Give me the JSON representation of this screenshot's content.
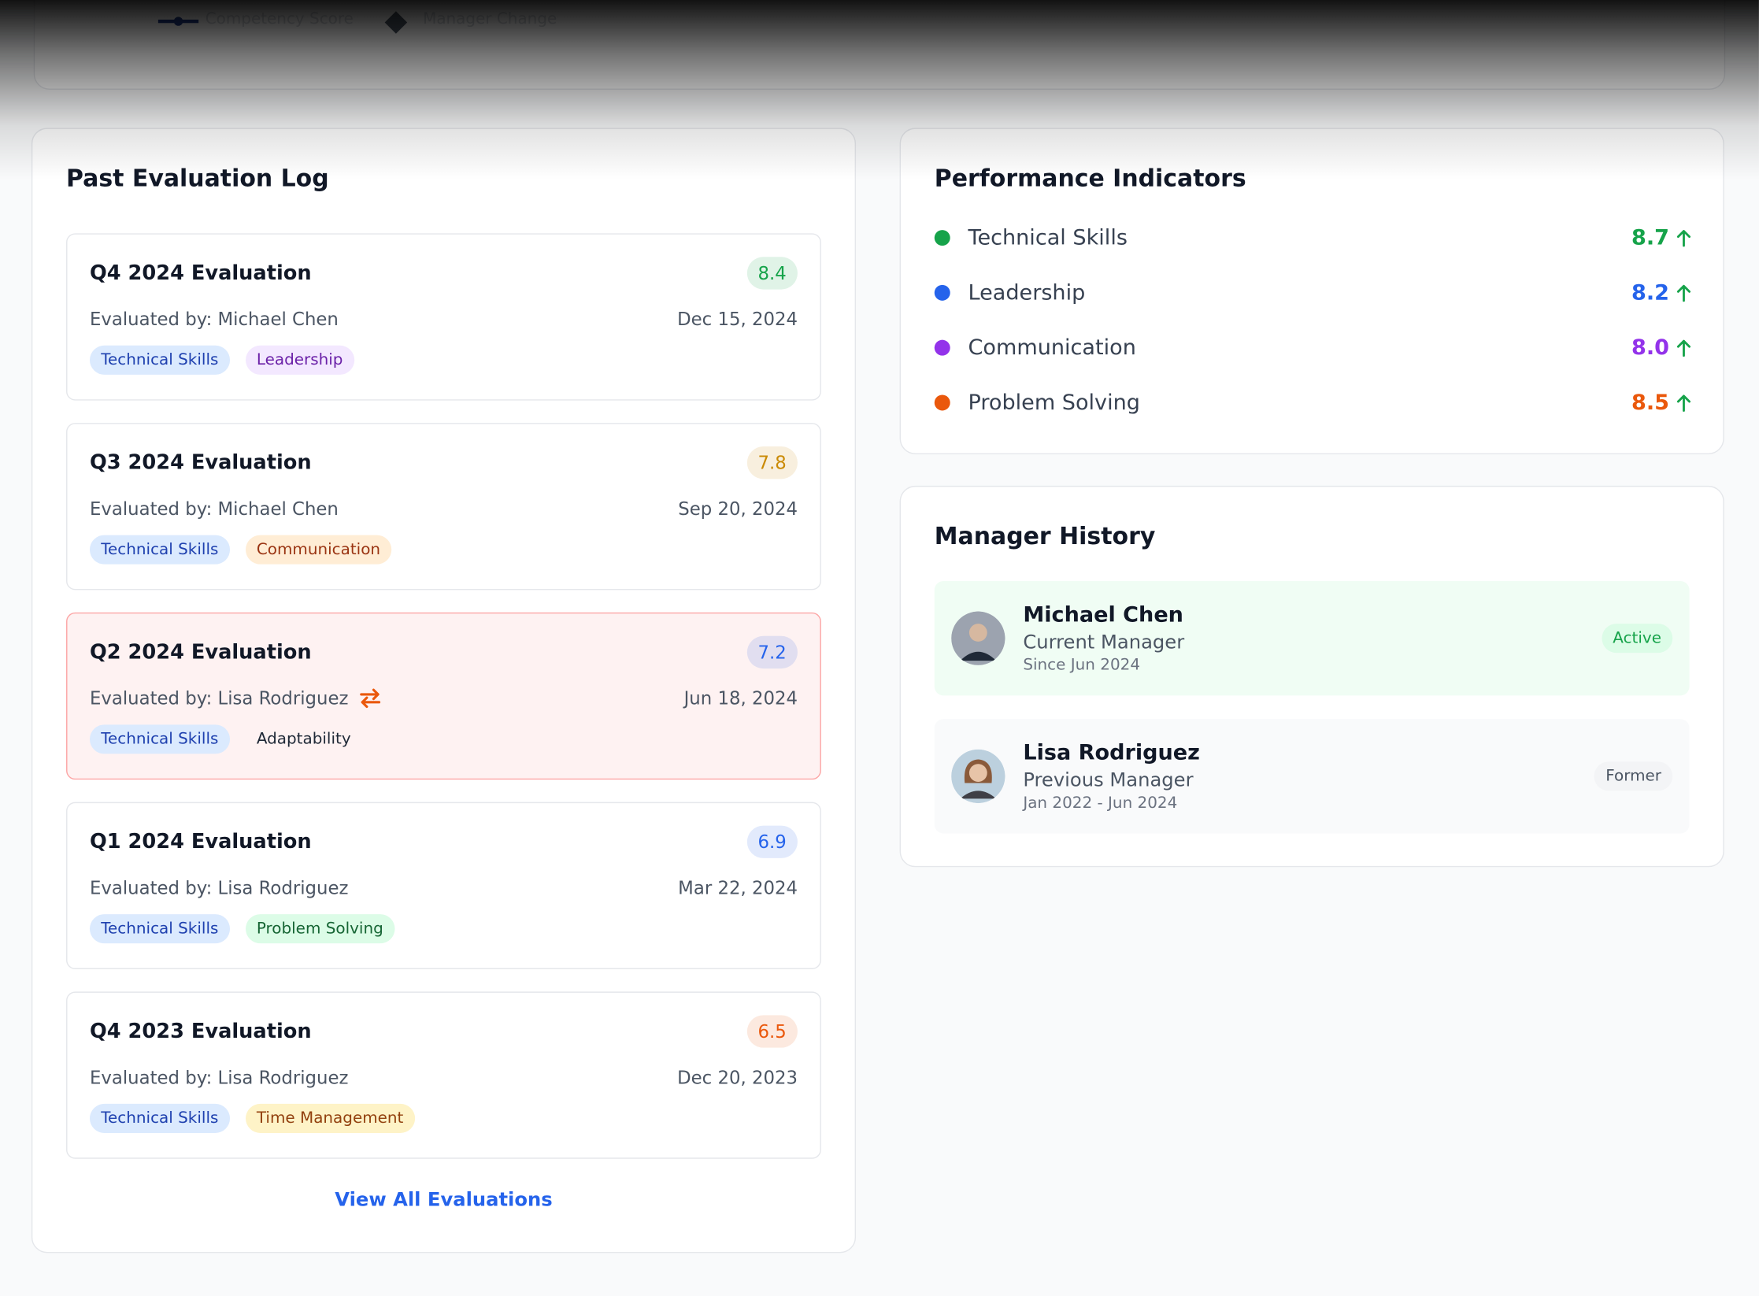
{
  "legend": [
    "Competency Score",
    "Manager Change"
  ],
  "evaluation_log": {
    "title": "Past Evaluation Log",
    "items": [
      {
        "title": "Q4 2024 Evaluation",
        "score": "8.4",
        "score_color": "#16a34a",
        "evaluator": "Evaluated by: Michael Chen",
        "date": "Dec 15, 2024",
        "manager_change": false,
        "tags": [
          {
            "label": "Technical Skills",
            "color": "#1e40af",
            "bg": "#dbeafe"
          },
          {
            "label": "Leadership",
            "color": "#6b21a8",
            "bg": "#f3e8ff"
          }
        ]
      },
      {
        "title": "Q3 2024 Evaluation",
        "score": "7.8",
        "score_color": "#ca8a04",
        "evaluator": "Evaluated by: Michael Chen",
        "date": "Sep 20, 2024",
        "manager_change": false,
        "tags": [
          {
            "label": "Technical Skills",
            "color": "#1e40af",
            "bg": "#dbeafe"
          },
          {
            "label": "Communication",
            "color": "#9a3412",
            "bg": "#ffedd5"
          }
        ]
      },
      {
        "title": "Q2 2024 Evaluation",
        "score": "7.2",
        "score_color": "#2563eb",
        "evaluator": "Evaluated by: Lisa Rodriguez",
        "date": "Jun 18, 2024",
        "manager_change": true,
        "tags": [
          {
            "label": "Technical Skills",
            "color": "#1e40af",
            "bg": "#dbeafe"
          },
          {
            "label": "Adaptability",
            "color": "#1f2937",
            "bg": "#fef2f2"
          }
        ]
      },
      {
        "title": "Q1 2024 Evaluation",
        "score": "6.9",
        "score_color": "#2563eb",
        "evaluator": "Evaluated by: Lisa Rodriguez",
        "date": "Mar 22, 2024",
        "manager_change": false,
        "tags": [
          {
            "label": "Technical Skills",
            "color": "#1e40af",
            "bg": "#dbeafe"
          },
          {
            "label": "Problem Solving",
            "color": "#166534",
            "bg": "#dcfce7"
          }
        ]
      },
      {
        "title": "Q4 2023 Evaluation",
        "score": "6.5",
        "score_color": "#ea580c",
        "evaluator": "Evaluated by: Lisa Rodriguez",
        "date": "Dec 20, 2023",
        "manager_change": false,
        "tags": [
          {
            "label": "Technical Skills",
            "color": "#1e40af",
            "bg": "#dbeafe"
          },
          {
            "label": "Time Management",
            "color": "#92400e",
            "bg": "#fef3c7"
          }
        ]
      }
    ],
    "link": "View All Evaluations"
  },
  "performance": {
    "title": "Performance Indicators",
    "items": [
      {
        "name": "Technical Skills",
        "value": "8.7",
        "color": "#16a34a"
      },
      {
        "name": "Leadership",
        "value": "8.2",
        "color": "#2563eb"
      },
      {
        "name": "Communication",
        "value": "8.0",
        "color": "#9333ea"
      },
      {
        "name": "Problem Solving",
        "value": "8.5",
        "color": "#ea580c"
      }
    ]
  },
  "manager_history": {
    "title": "Manager History",
    "items": [
      {
        "name": "Michael Chen",
        "role": "Current Manager",
        "period": "Since Jun 2024",
        "status": "Active",
        "current": true
      },
      {
        "name": "Lisa Rodriguez",
        "role": "Previous Manager",
        "period": "Jan 2022 - Jun 2024",
        "status": "Former",
        "current": false
      }
    ]
  }
}
